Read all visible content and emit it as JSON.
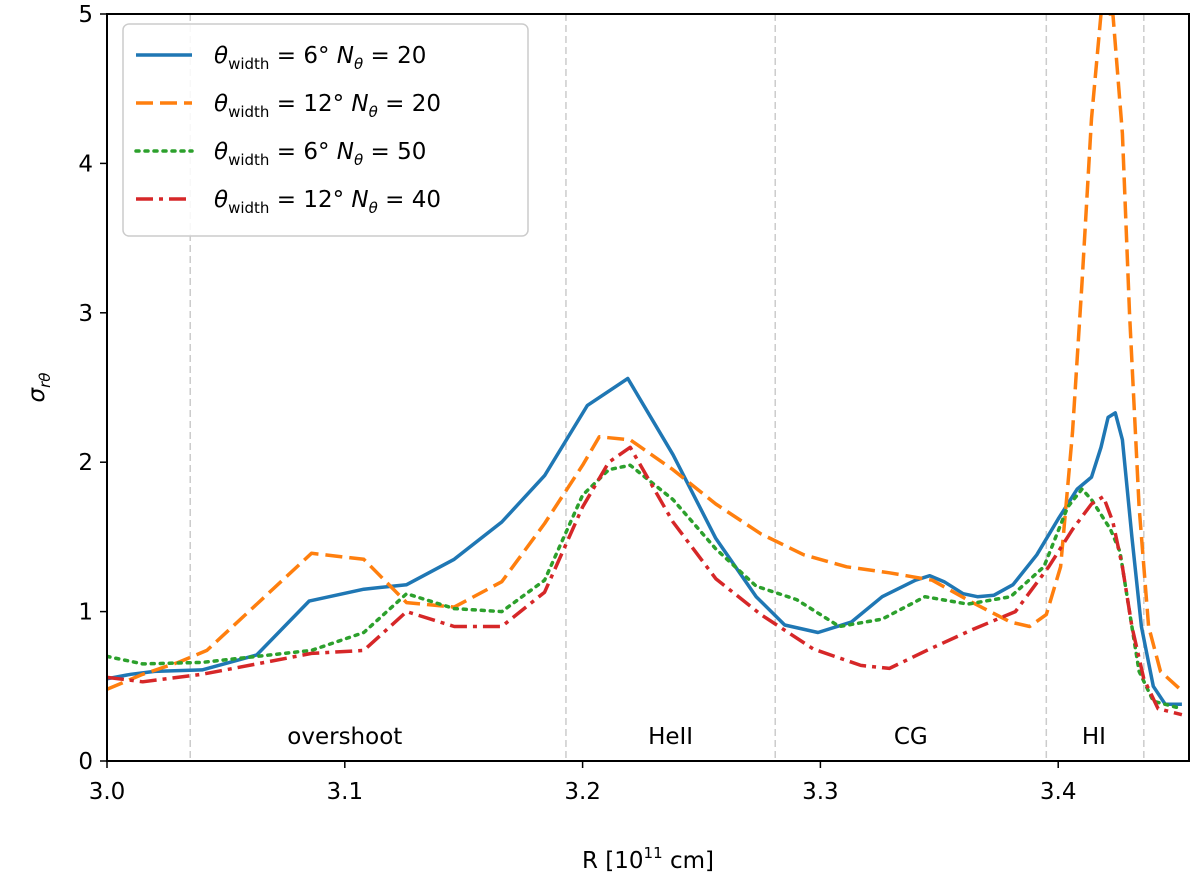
{
  "chart_data": {
    "type": "line",
    "xlabel": {
      "base": "R [10",
      "sup": "11",
      "tail": " cm]"
    },
    "ylabel": {
      "base": "σ",
      "sub": "rθ"
    },
    "xlim": [
      3.0,
      3.455
    ],
    "ylim": [
      0,
      5
    ],
    "xticks": [
      3.0,
      3.1,
      3.2,
      3.3,
      3.4
    ],
    "xtick_labels": [
      "3.0",
      "3.1",
      "3.2",
      "3.3",
      "3.4"
    ],
    "yticks": [
      0,
      1,
      2,
      3,
      4,
      5
    ],
    "ytick_labels": [
      "0",
      "1",
      "2",
      "3",
      "4",
      "5"
    ],
    "grid": false,
    "legend_placement": "top-left",
    "region_boundaries": [
      3.035,
      3.193,
      3.281,
      3.395,
      3.436
    ],
    "regions": [
      {
        "label": "overshoot",
        "x": 3.1
      },
      {
        "label": "HeII",
        "x": 3.237
      },
      {
        "label": "CG",
        "x": 3.338
      },
      {
        "label": "HI",
        "x": 3.415
      }
    ],
    "series": [
      {
        "name": "θwidth = 6°  Nθ = 20",
        "legend": {
          "a": "θ",
          "a_sub": "width",
          "b": " = 6°   ",
          "c": "N",
          "c_sub": "θ",
          "d": " = 20"
        },
        "color": "#1f77b4",
        "style": "solid",
        "x": [
          3.0,
          3.01,
          3.02,
          3.04,
          3.063,
          3.085,
          3.108,
          3.126,
          3.146,
          3.166,
          3.184,
          3.202,
          3.219,
          3.238,
          3.256,
          3.273,
          3.285,
          3.299,
          3.313,
          3.326,
          3.34,
          3.346,
          3.352,
          3.36,
          3.366,
          3.373,
          3.381,
          3.391,
          3.4,
          3.408,
          3.414,
          3.418,
          3.421,
          3.424,
          3.427,
          3.431,
          3.435,
          3.44,
          3.445,
          3.452
        ],
        "y": [
          0.55,
          0.58,
          0.6,
          0.61,
          0.71,
          1.07,
          1.15,
          1.18,
          1.35,
          1.6,
          1.91,
          2.38,
          2.56,
          2.05,
          1.49,
          1.1,
          0.91,
          0.86,
          0.93,
          1.1,
          1.21,
          1.24,
          1.2,
          1.12,
          1.1,
          1.11,
          1.18,
          1.38,
          1.62,
          1.82,
          1.9,
          2.1,
          2.3,
          2.33,
          2.15,
          1.5,
          0.9,
          0.5,
          0.38,
          0.38
        ]
      },
      {
        "name": "θwidth = 12°  Nθ = 20",
        "legend": {
          "a": "θ",
          "a_sub": "width",
          "b": " = 12°   ",
          "c": "N",
          "c_sub": "θ",
          "d": " = 20"
        },
        "color": "#ff7f0e",
        "style": "dashed",
        "x": [
          3.0,
          3.015,
          3.03,
          3.042,
          3.063,
          3.086,
          3.108,
          3.126,
          3.146,
          3.166,
          3.184,
          3.2,
          3.207,
          3.22,
          3.238,
          3.256,
          3.275,
          3.293,
          3.311,
          3.329,
          3.347,
          3.364,
          3.38,
          3.388,
          3.395,
          3.401,
          3.406,
          3.41,
          3.414,
          3.418,
          3.423,
          3.427,
          3.43,
          3.434,
          3.438,
          3.443,
          3.452
        ],
        "y": [
          0.48,
          0.58,
          0.66,
          0.74,
          1.05,
          1.39,
          1.35,
          1.06,
          1.03,
          1.2,
          1.59,
          1.98,
          2.17,
          2.15,
          1.95,
          1.72,
          1.52,
          1.38,
          1.3,
          1.26,
          1.21,
          1.06,
          0.93,
          0.9,
          0.98,
          1.3,
          2.2,
          3.2,
          4.3,
          5.0,
          5.0,
          4.2,
          3.0,
          1.7,
          0.9,
          0.6,
          0.47
        ]
      },
      {
        "name": "θwidth = 6°  Nθ = 50",
        "legend": {
          "a": "θ",
          "a_sub": "width",
          "b": " = 6°   ",
          "c": "N",
          "c_sub": "θ",
          "d": " = 50"
        },
        "color": "#2ca02c",
        "style": "dotted",
        "x": [
          3.0,
          3.015,
          3.04,
          3.063,
          3.086,
          3.108,
          3.126,
          3.146,
          3.166,
          3.184,
          3.2,
          3.211,
          3.22,
          3.238,
          3.256,
          3.273,
          3.29,
          3.308,
          3.326,
          3.344,
          3.362,
          3.38,
          3.394,
          3.404,
          3.41,
          3.414,
          3.418,
          3.422,
          3.426,
          3.43,
          3.434,
          3.44,
          3.452
        ],
        "y": [
          0.7,
          0.65,
          0.66,
          0.7,
          0.74,
          0.86,
          1.12,
          1.02,
          1.0,
          1.21,
          1.78,
          1.95,
          1.98,
          1.75,
          1.42,
          1.17,
          1.08,
          0.9,
          0.95,
          1.1,
          1.05,
          1.1,
          1.3,
          1.7,
          1.82,
          1.75,
          1.65,
          1.55,
          1.4,
          1.0,
          0.6,
          0.4,
          0.35
        ]
      },
      {
        "name": "θwidth = 12°  Nθ = 40",
        "legend": {
          "a": "θ",
          "a_sub": "width",
          "b": " = 12°   ",
          "c": "N",
          "c_sub": "θ",
          "d": " = 40"
        },
        "color": "#d62728",
        "style": "dashdot",
        "x": [
          3.0,
          3.015,
          3.04,
          3.063,
          3.086,
          3.108,
          3.126,
          3.146,
          3.166,
          3.184,
          3.2,
          3.211,
          3.22,
          3.238,
          3.256,
          3.275,
          3.297,
          3.317,
          3.329,
          3.346,
          3.364,
          3.382,
          3.396,
          3.406,
          3.414,
          3.419,
          3.423,
          3.427,
          3.431,
          3.436,
          3.442,
          3.452
        ],
        "y": [
          0.56,
          0.53,
          0.58,
          0.65,
          0.72,
          0.74,
          1.0,
          0.9,
          0.9,
          1.13,
          1.7,
          2.0,
          2.1,
          1.6,
          1.22,
          0.98,
          0.75,
          0.64,
          0.62,
          0.75,
          0.88,
          1.0,
          1.3,
          1.55,
          1.72,
          1.77,
          1.6,
          1.3,
          0.9,
          0.55,
          0.35,
          0.31
        ]
      }
    ]
  }
}
